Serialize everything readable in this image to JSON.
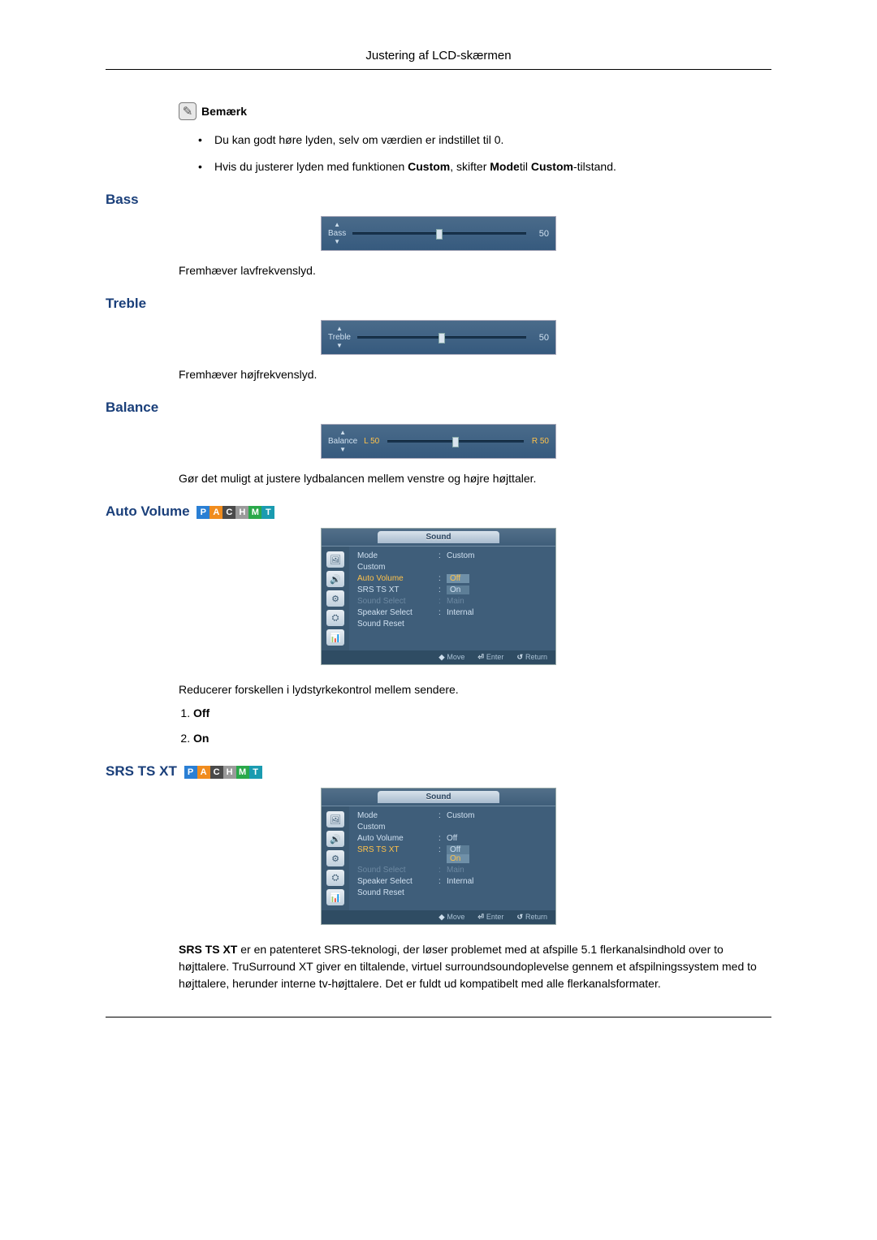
{
  "header_title": "Justering af LCD-skærmen",
  "note": {
    "label": "Bemærk",
    "items": [
      "Du kan godt høre lyden, selv om værdien er indstillet til 0.",
      "Hvis du justerer lyden med funktionen <b>Custom</b>, skifter <b>Mode</b>til <b>Custom</b>-tilstand."
    ]
  },
  "badges": [
    {
      "letter": "P",
      "color": "#2a7fd4"
    },
    {
      "letter": "A",
      "color": "#f08c1e"
    },
    {
      "letter": "C",
      "color": "#4a4a4a"
    },
    {
      "letter": "H",
      "color": "#9a9a9a"
    },
    {
      "letter": "M",
      "color": "#2aa84a"
    },
    {
      "letter": "T",
      "color": "#1a9bb0"
    }
  ],
  "bass": {
    "title": "Bass",
    "slider_label": "Bass",
    "value": 50,
    "thumb_pct": 50,
    "desc": "Fremhæver lavfrekvenslyd."
  },
  "treble": {
    "title": "Treble",
    "slider_label": "Treble",
    "value": 50,
    "thumb_pct": 50,
    "desc": "Fremhæver højfrekvenslyd."
  },
  "balance": {
    "title": "Balance",
    "slider_label": "Balance",
    "left_label": "L 50",
    "right_label": "R 50",
    "thumb_pct": 50,
    "desc": "Gør det muligt at justere lydbalancen mellem venstre og højre højttaler."
  },
  "auto_volume": {
    "title": "Auto Volume",
    "desc": "Reducerer forskellen i lydstyrkekontrol mellem sendere.",
    "options": [
      "Off",
      "On"
    ],
    "osd": {
      "tab": "Sound",
      "rows": [
        {
          "label": "Mode",
          "val": "Custom",
          "colon": ":",
          "dim": false,
          "hi": false
        },
        {
          "label": "Custom",
          "val": "",
          "colon": "",
          "dim": false,
          "hi": false
        },
        {
          "label": "Auto Volume",
          "val_box": "Off",
          "val_box2": "",
          "box_hi": true,
          "colon": ":",
          "dim": false,
          "hi": true
        },
        {
          "label": "SRS TS XT",
          "val_box": "On",
          "colon": ":",
          "dim": false,
          "hi": false
        },
        {
          "label": "Sound Select",
          "val": "Main",
          "colon": ":",
          "dim": true,
          "hi": false
        },
        {
          "label": "Speaker Select",
          "val": "Internal",
          "colon": ":",
          "dim": false,
          "hi": false
        },
        {
          "label": "Sound Reset",
          "val": "",
          "colon": "",
          "dim": false,
          "hi": false
        }
      ],
      "footer": {
        "move": "Move",
        "enter": "Enter",
        "return": "Return"
      }
    }
  },
  "srs": {
    "title": "SRS TS XT",
    "osd": {
      "tab": "Sound",
      "rows": [
        {
          "label": "Mode",
          "val": "Custom",
          "colon": ":",
          "dim": false,
          "hi": false
        },
        {
          "label": "Custom",
          "val": "",
          "colon": "",
          "dim": false,
          "hi": false
        },
        {
          "label": "Auto Volume",
          "val": "Off",
          "colon": ":",
          "dim": false,
          "hi": false
        },
        {
          "label": "SRS TS XT",
          "val_box": "Off",
          "val_box2": "On",
          "box_hi": false,
          "box2_hi": true,
          "colon": ":",
          "dim": false,
          "hi": true
        },
        {
          "label": "Sound Select",
          "val": "Main",
          "colon": ":",
          "dim": true,
          "hi": false
        },
        {
          "label": "Speaker Select",
          "val": "Internal",
          "colon": ":",
          "dim": false,
          "hi": false
        },
        {
          "label": "Sound Reset",
          "val": "",
          "colon": "",
          "dim": false,
          "hi": false
        }
      ],
      "footer": {
        "move": "Move",
        "enter": "Enter",
        "return": "Return"
      }
    },
    "desc": "<b>SRS TS XT</b> er en patenteret SRS-teknologi, der løser problemet med at afspille 5.1 flerkanalsindhold over to højttalere. TruSurround XT giver en tiltalende, virtuel surroundsoundoplevelse gennem et afspilningssystem med to højttalere, herunder interne tv-højttalere. Det er fuldt ud kompatibelt med alle flerkanalsformater."
  },
  "osd_icons": [
    "🖼",
    "🔊",
    "⚙",
    "⛭",
    "📊"
  ]
}
